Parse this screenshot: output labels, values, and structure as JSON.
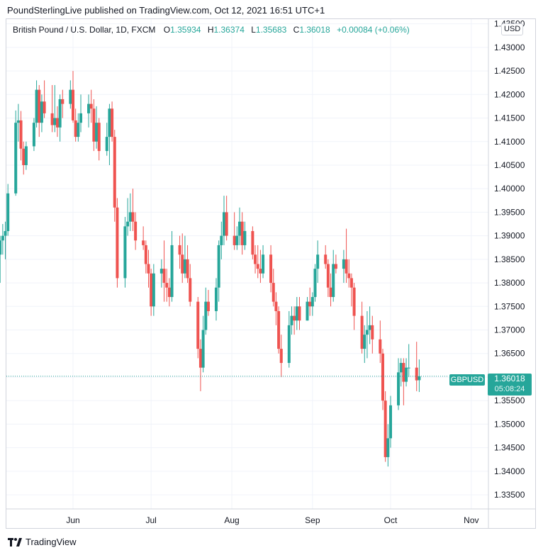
{
  "header": {
    "text": "PoundSterlingLive published on TradingView.com, Oct 12, 2021 16:51 UTC+1"
  },
  "legend": {
    "symbol": "British Pound / U.S. Dollar, 1D, FXCM",
    "open_label": "O",
    "open": "1.35934",
    "high_label": "H",
    "high": "1.36374",
    "low_label": "L",
    "low": "1.35683",
    "close_label": "C",
    "close": "1.36018",
    "change": "+0.00084 (+0.06%)"
  },
  "currency": "USD",
  "price_tag": {
    "symbol": "GBPUSD",
    "price": "1.36018",
    "countdown": "05:08:24"
  },
  "footer": {
    "brand": "TradingView"
  },
  "colors": {
    "up": "#26a69a",
    "down": "#ef5350",
    "grid": "#f0f3fa",
    "border": "#d1d4dc"
  },
  "chart_data": {
    "type": "candlestick",
    "series_name": "GBPUSD",
    "ylim": [
      1.332,
      1.436
    ],
    "y_ticks": [
      "1.33500",
      "1.34000",
      "1.34500",
      "1.35000",
      "1.35500",
      "1.36000",
      "1.36500",
      "1.37000",
      "1.37500",
      "1.38000",
      "1.38500",
      "1.39000",
      "1.39500",
      "1.40000",
      "1.40500",
      "1.41000",
      "1.41500",
      "1.42000",
      "1.42500",
      "1.43000",
      "1.43500"
    ],
    "x_ticks": [
      "Jun",
      "Jul",
      "Aug",
      "Sep",
      "Oct",
      "Nov"
    ],
    "x_tick_dates": [
      "2021-06-01",
      "2021-07-01",
      "2021-08-01",
      "2021-09-01",
      "2021-10-01",
      "2021-11-01"
    ],
    "last_price": 1.36018,
    "candles": [
      {
        "d": "2021-04-26",
        "o": 1.382,
        "h": 1.389,
        "l": 1.3805,
        "c": 1.383
      },
      {
        "d": "2021-04-27",
        "o": 1.383,
        "h": 1.392,
        "l": 1.382,
        "c": 1.3905
      },
      {
        "d": "2021-04-28",
        "o": 1.3905,
        "h": 1.397,
        "l": 1.388,
        "c": 1.396
      },
      {
        "d": "2021-04-29",
        "o": 1.396,
        "h": 1.4,
        "l": 1.391,
        "c": 1.3935
      },
      {
        "d": "2021-04-30",
        "o": 1.3935,
        "h": 1.395,
        "l": 1.38,
        "c": 1.382
      },
      {
        "d": "2021-05-03",
        "o": 1.382,
        "h": 1.389,
        "l": 1.38,
        "c": 1.386
      },
      {
        "d": "2021-05-04",
        "o": 1.386,
        "h": 1.39,
        "l": 1.38,
        "c": 1.389
      },
      {
        "d": "2021-05-05",
        "o": 1.389,
        "h": 1.3925,
        "l": 1.386,
        "c": 1.39
      },
      {
        "d": "2021-05-06",
        "o": 1.39,
        "h": 1.393,
        "l": 1.385,
        "c": 1.391
      },
      {
        "d": "2021-05-07",
        "o": 1.391,
        "h": 1.401,
        "l": 1.39,
        "c": 1.399
      },
      {
        "d": "2021-05-10",
        "o": 1.399,
        "h": 1.4166,
        "l": 1.3985,
        "c": 1.414
      },
      {
        "d": "2021-05-11",
        "o": 1.414,
        "h": 1.418,
        "l": 1.41,
        "c": 1.4145
      },
      {
        "d": "2021-05-12",
        "o": 1.4145,
        "h": 1.4165,
        "l": 1.406,
        "c": 1.4085
      },
      {
        "d": "2021-05-13",
        "o": 1.4085,
        "h": 1.41,
        "l": 1.403,
        "c": 1.405
      },
      {
        "d": "2021-05-14",
        "o": 1.405,
        "h": 1.41,
        "l": 1.404,
        "c": 1.409
      },
      {
        "d": "2021-05-17",
        "o": 1.409,
        "h": 1.415,
        "l": 1.408,
        "c": 1.414
      },
      {
        "d": "2021-05-18",
        "o": 1.414,
        "h": 1.423,
        "l": 1.413,
        "c": 1.421
      },
      {
        "d": "2021-05-19",
        "o": 1.421,
        "h": 1.422,
        "l": 1.411,
        "c": 1.414
      },
      {
        "d": "2021-05-20",
        "o": 1.414,
        "h": 1.42,
        "l": 1.412,
        "c": 1.4185
      },
      {
        "d": "2021-05-21",
        "o": 1.4185,
        "h": 1.423,
        "l": 1.415,
        "c": 1.416
      },
      {
        "d": "2021-05-24",
        "o": 1.416,
        "h": 1.422,
        "l": 1.412,
        "c": 1.4135
      },
      {
        "d": "2021-05-25",
        "o": 1.4135,
        "h": 1.422,
        "l": 1.412,
        "c": 1.415
      },
      {
        "d": "2021-05-26",
        "o": 1.415,
        "h": 1.4175,
        "l": 1.411,
        "c": 1.413
      },
      {
        "d": "2021-05-27",
        "o": 1.413,
        "h": 1.42,
        "l": 1.41,
        "c": 1.419
      },
      {
        "d": "2021-05-28",
        "o": 1.419,
        "h": 1.421,
        "l": 1.415,
        "c": 1.418
      },
      {
        "d": "2021-05-31",
        "o": 1.418,
        "h": 1.423,
        "l": 1.417,
        "c": 1.421
      },
      {
        "d": "2021-06-01",
        "o": 1.421,
        "h": 1.425,
        "l": 1.414,
        "c": 1.4145
      },
      {
        "d": "2021-06-02",
        "o": 1.4145,
        "h": 1.417,
        "l": 1.41,
        "c": 1.411
      },
      {
        "d": "2021-06-03",
        "o": 1.411,
        "h": 1.416,
        "l": 1.41,
        "c": 1.414
      },
      {
        "d": "2021-06-04",
        "o": 1.414,
        "h": 1.42,
        "l": 1.412,
        "c": 1.416
      },
      {
        "d": "2021-06-07",
        "o": 1.416,
        "h": 1.42,
        "l": 1.413,
        "c": 1.418
      },
      {
        "d": "2021-06-08",
        "o": 1.418,
        "h": 1.421,
        "l": 1.414,
        "c": 1.417
      },
      {
        "d": "2021-06-09",
        "o": 1.417,
        "h": 1.419,
        "l": 1.408,
        "c": 1.41
      },
      {
        "d": "2021-06-10",
        "o": 1.41,
        "h": 1.4175,
        "l": 1.4085,
        "c": 1.414
      },
      {
        "d": "2021-06-11",
        "o": 1.414,
        "h": 1.415,
        "l": 1.406,
        "c": 1.408
      },
      {
        "d": "2021-06-14",
        "o": 1.408,
        "h": 1.414,
        "l": 1.407,
        "c": 1.411
      },
      {
        "d": "2021-06-15",
        "o": 1.411,
        "h": 1.418,
        "l": 1.405,
        "c": 1.417
      },
      {
        "d": "2021-06-16",
        "o": 1.417,
        "h": 1.4185,
        "l": 1.41,
        "c": 1.411
      },
      {
        "d": "2021-06-17",
        "o": 1.411,
        "h": 1.4125,
        "l": 1.393,
        "c": 1.396
      },
      {
        "d": "2021-06-18",
        "o": 1.396,
        "h": 1.398,
        "l": 1.379,
        "c": 1.381
      },
      {
        "d": "2021-06-21",
        "o": 1.381,
        "h": 1.394,
        "l": 1.379,
        "c": 1.392
      },
      {
        "d": "2021-06-22",
        "o": 1.392,
        "h": 1.398,
        "l": 1.39,
        "c": 1.393
      },
      {
        "d": "2021-06-23",
        "o": 1.393,
        "h": 1.399,
        "l": 1.391,
        "c": 1.395
      },
      {
        "d": "2021-06-24",
        "o": 1.395,
        "h": 1.4,
        "l": 1.391,
        "c": 1.393
      },
      {
        "d": "2021-06-25",
        "o": 1.393,
        "h": 1.395,
        "l": 1.387,
        "c": 1.389
      },
      {
        "d": "2021-06-28",
        "o": 1.389,
        "h": 1.392,
        "l": 1.387,
        "c": 1.388
      },
      {
        "d": "2021-06-29",
        "o": 1.388,
        "h": 1.389,
        "l": 1.382,
        "c": 1.384
      },
      {
        "d": "2021-06-30",
        "o": 1.384,
        "h": 1.387,
        "l": 1.379,
        "c": 1.382
      },
      {
        "d": "2021-07-01",
        "o": 1.382,
        "h": 1.383,
        "l": 1.373,
        "c": 1.375
      },
      {
        "d": "2021-07-02",
        "o": 1.375,
        "h": 1.384,
        "l": 1.373,
        "c": 1.382
      },
      {
        "d": "2021-07-05",
        "o": 1.382,
        "h": 1.385,
        "l": 1.379,
        "c": 1.383
      },
      {
        "d": "2021-07-06",
        "o": 1.383,
        "h": 1.389,
        "l": 1.376,
        "c": 1.38
      },
      {
        "d": "2021-07-07",
        "o": 1.38,
        "h": 1.383,
        "l": 1.376,
        "c": 1.379
      },
      {
        "d": "2021-07-08",
        "o": 1.379,
        "h": 1.381,
        "l": 1.375,
        "c": 1.377
      },
      {
        "d": "2021-07-09",
        "o": 1.377,
        "h": 1.391,
        "l": 1.376,
        "c": 1.388
      },
      {
        "d": "2021-07-12",
        "o": 1.388,
        "h": 1.39,
        "l": 1.383,
        "c": 1.386
      },
      {
        "d": "2021-07-13",
        "o": 1.386,
        "h": 1.3905,
        "l": 1.38,
        "c": 1.382
      },
      {
        "d": "2021-07-14",
        "o": 1.382,
        "h": 1.39,
        "l": 1.381,
        "c": 1.385
      },
      {
        "d": "2021-07-15",
        "o": 1.385,
        "h": 1.388,
        "l": 1.38,
        "c": 1.381
      },
      {
        "d": "2021-07-16",
        "o": 1.381,
        "h": 1.384,
        "l": 1.375,
        "c": 1.376
      },
      {
        "d": "2021-07-19",
        "o": 1.376,
        "h": 1.377,
        "l": 1.364,
        "c": 1.366
      },
      {
        "d": "2021-07-20",
        "o": 1.366,
        "h": 1.368,
        "l": 1.357,
        "c": 1.362
      },
      {
        "d": "2021-07-21",
        "o": 1.362,
        "h": 1.373,
        "l": 1.361,
        "c": 1.37
      },
      {
        "d": "2021-07-22",
        "o": 1.37,
        "h": 1.379,
        "l": 1.369,
        "c": 1.376
      },
      {
        "d": "2021-07-23",
        "o": 1.376,
        "h": 1.3785,
        "l": 1.373,
        "c": 1.374
      },
      {
        "d": "2021-07-26",
        "o": 1.374,
        "h": 1.381,
        "l": 1.372,
        "c": 1.379
      },
      {
        "d": "2021-07-27",
        "o": 1.379,
        "h": 1.389,
        "l": 1.376,
        "c": 1.388
      },
      {
        "d": "2021-07-28",
        "o": 1.388,
        "h": 1.393,
        "l": 1.385,
        "c": 1.39
      },
      {
        "d": "2021-07-29",
        "o": 1.39,
        "h": 1.3985,
        "l": 1.388,
        "c": 1.395
      },
      {
        "d": "2021-07-30",
        "o": 1.395,
        "h": 1.3985,
        "l": 1.389,
        "c": 1.39
      },
      {
        "d": "2021-08-02",
        "o": 1.39,
        "h": 1.395,
        "l": 1.387,
        "c": 1.388
      },
      {
        "d": "2021-08-03",
        "o": 1.388,
        "h": 1.392,
        "l": 1.387,
        "c": 1.39
      },
      {
        "d": "2021-08-04",
        "o": 1.39,
        "h": 1.396,
        "l": 1.388,
        "c": 1.393
      },
      {
        "d": "2021-08-05",
        "o": 1.393,
        "h": 1.395,
        "l": 1.386,
        "c": 1.388
      },
      {
        "d": "2021-08-06",
        "o": 1.388,
        "h": 1.393,
        "l": 1.387,
        "c": 1.391
      },
      {
        "d": "2021-08-09",
        "o": 1.391,
        "h": 1.392,
        "l": 1.385,
        "c": 1.386
      },
      {
        "d": "2021-08-10",
        "o": 1.386,
        "h": 1.388,
        "l": 1.382,
        "c": 1.384
      },
      {
        "d": "2021-08-11",
        "o": 1.384,
        "h": 1.388,
        "l": 1.381,
        "c": 1.383
      },
      {
        "d": "2021-08-12",
        "o": 1.383,
        "h": 1.387,
        "l": 1.38,
        "c": 1.382
      },
      {
        "d": "2021-08-13",
        "o": 1.382,
        "h": 1.388,
        "l": 1.381,
        "c": 1.386
      },
      {
        "d": "2021-08-16",
        "o": 1.386,
        "h": 1.388,
        "l": 1.378,
        "c": 1.38
      },
      {
        "d": "2021-08-17",
        "o": 1.38,
        "h": 1.383,
        "l": 1.375,
        "c": 1.376
      },
      {
        "d": "2021-08-18",
        "o": 1.376,
        "h": 1.378,
        "l": 1.371,
        "c": 1.374
      },
      {
        "d": "2021-08-19",
        "o": 1.374,
        "h": 1.375,
        "l": 1.365,
        "c": 1.366
      },
      {
        "d": "2021-08-20",
        "o": 1.366,
        "h": 1.369,
        "l": 1.36,
        "c": 1.363
      },
      {
        "d": "2021-08-23",
        "o": 1.363,
        "h": 1.374,
        "l": 1.362,
        "c": 1.371
      },
      {
        "d": "2021-08-24",
        "o": 1.371,
        "h": 1.375,
        "l": 1.369,
        "c": 1.373
      },
      {
        "d": "2021-08-25",
        "o": 1.373,
        "h": 1.375,
        "l": 1.369,
        "c": 1.372
      },
      {
        "d": "2021-08-26",
        "o": 1.372,
        "h": 1.377,
        "l": 1.37,
        "c": 1.375
      },
      {
        "d": "2021-08-27",
        "o": 1.375,
        "h": 1.377,
        "l": 1.37,
        "c": 1.372
      },
      {
        "d": "2021-08-30",
        "o": 1.372,
        "h": 1.377,
        "l": 1.372,
        "c": 1.376
      },
      {
        "d": "2021-08-31",
        "o": 1.376,
        "h": 1.379,
        "l": 1.373,
        "c": 1.375
      },
      {
        "d": "2021-09-01",
        "o": 1.375,
        "h": 1.378,
        "l": 1.373,
        "c": 1.377
      },
      {
        "d": "2021-09-02",
        "o": 1.377,
        "h": 1.384,
        "l": 1.376,
        "c": 1.383
      },
      {
        "d": "2021-09-03",
        "o": 1.383,
        "h": 1.389,
        "l": 1.38,
        "c": 1.386
      },
      {
        "d": "2021-09-06",
        "o": 1.386,
        "h": 1.388,
        "l": 1.383,
        "c": 1.384
      },
      {
        "d": "2021-09-07",
        "o": 1.384,
        "h": 1.385,
        "l": 1.377,
        "c": 1.379
      },
      {
        "d": "2021-09-08",
        "o": 1.379,
        "h": 1.382,
        "l": 1.375,
        "c": 1.377
      },
      {
        "d": "2021-09-09",
        "o": 1.377,
        "h": 1.387,
        "l": 1.376,
        "c": 1.384
      },
      {
        "d": "2021-09-10",
        "o": 1.384,
        "h": 1.386,
        "l": 1.382,
        "c": 1.383
      },
      {
        "d": "2021-09-13",
        "o": 1.383,
        "h": 1.387,
        "l": 1.38,
        "c": 1.385
      },
      {
        "d": "2021-09-14",
        "o": 1.385,
        "h": 1.3915,
        "l": 1.38,
        "c": 1.382
      },
      {
        "d": "2021-09-15",
        "o": 1.382,
        "h": 1.385,
        "l": 1.379,
        "c": 1.381
      },
      {
        "d": "2021-09-16",
        "o": 1.381,
        "h": 1.382,
        "l": 1.375,
        "c": 1.379
      },
      {
        "d": "2021-09-17",
        "o": 1.379,
        "h": 1.38,
        "l": 1.37,
        "c": 1.373
      },
      {
        "d": "2021-09-20",
        "o": 1.373,
        "h": 1.376,
        "l": 1.365,
        "c": 1.366
      },
      {
        "d": "2021-09-21",
        "o": 1.366,
        "h": 1.371,
        "l": 1.363,
        "c": 1.369
      },
      {
        "d": "2021-09-22",
        "o": 1.369,
        "h": 1.374,
        "l": 1.364,
        "c": 1.37
      },
      {
        "d": "2021-09-23",
        "o": 1.37,
        "h": 1.375,
        "l": 1.367,
        "c": 1.371
      },
      {
        "d": "2021-09-24",
        "o": 1.371,
        "h": 1.373,
        "l": 1.365,
        "c": 1.368
      },
      {
        "d": "2021-09-27",
        "o": 1.368,
        "h": 1.372,
        "l": 1.363,
        "c": 1.365
      },
      {
        "d": "2021-09-28",
        "o": 1.365,
        "h": 1.366,
        "l": 1.353,
        "c": 1.355
      },
      {
        "d": "2021-09-29",
        "o": 1.355,
        "h": 1.357,
        "l": 1.342,
        "c": 1.343
      },
      {
        "d": "2021-09-30",
        "o": 1.343,
        "h": 1.35,
        "l": 1.341,
        "c": 1.347
      },
      {
        "d": "2021-10-01",
        "o": 1.347,
        "h": 1.356,
        "l": 1.345,
        "c": 1.354
      },
      {
        "d": "2021-10-04",
        "o": 1.354,
        "h": 1.364,
        "l": 1.353,
        "c": 1.361
      },
      {
        "d": "2021-10-05",
        "o": 1.361,
        "h": 1.364,
        "l": 1.358,
        "c": 1.363
      },
      {
        "d": "2021-10-06",
        "o": 1.363,
        "h": 1.364,
        "l": 1.354,
        "c": 1.359
      },
      {
        "d": "2021-10-07",
        "o": 1.359,
        "h": 1.364,
        "l": 1.358,
        "c": 1.362
      },
      {
        "d": "2021-10-08",
        "o": 1.362,
        "h": 1.367,
        "l": 1.36,
        "c": 1.362
      },
      {
        "d": "2021-10-11",
        "o": 1.362,
        "h": 1.3675,
        "l": 1.357,
        "c": 1.3593
      },
      {
        "d": "2021-10-12",
        "o": 1.35934,
        "h": 1.36374,
        "l": 1.35683,
        "c": 1.36018
      }
    ]
  }
}
